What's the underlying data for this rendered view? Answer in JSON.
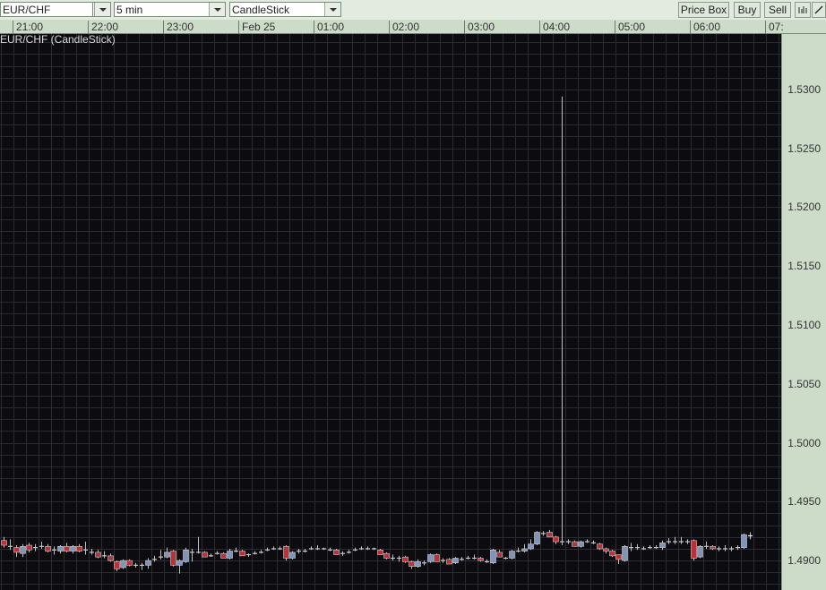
{
  "toolbar": {
    "symbol": "EUR/CHF",
    "interval": "5 min",
    "chart_type": "CandleStick",
    "price_box_label": "Price Box",
    "buy_label": "Buy",
    "sell_label": "Sell",
    "bars_icon": "bar-chart-icon",
    "draw_icon": "line-draw-icon"
  },
  "chart_title": "EUR/CHF (CandleStick)",
  "colors": {
    "background": "#0b0b10",
    "grid": "#2b2b35",
    "up": "#7f94b8",
    "down": "#b8323a",
    "doji": "#c8c8c8",
    "wick": "#c0c0c0"
  },
  "chart_data": {
    "type": "candlestick",
    "title": "EUR/CHF (CandleStick)",
    "x_tick_labels": [
      "21:00",
      "22:00",
      "23:00",
      "Feb 25",
      "01:00",
      "02:00",
      "03:00",
      "04:00",
      "05:00",
      "06:00",
      "07:"
    ],
    "y_tick_labels": [
      "1.5300",
      "1.5250",
      "1.5200",
      "1.5150",
      "1.5100",
      "1.5050",
      "1.5000",
      "1.4950",
      "1.4900"
    ],
    "ylim": [
      1.4875,
      1.5347
    ],
    "grid": true,
    "candle_fields": [
      "open",
      "high",
      "low",
      "close"
    ],
    "candles": [
      [
        1.4917,
        1.492,
        1.4911,
        1.4913
      ],
      [
        1.4912,
        1.4918,
        1.4909,
        1.4912
      ],
      [
        1.4911,
        1.4913,
        1.4903,
        1.4907
      ],
      [
        1.4906,
        1.4914,
        1.4903,
        1.4912
      ],
      [
        1.4913,
        1.4915,
        1.4907,
        1.4909
      ],
      [
        1.4911,
        1.4914,
        1.4908,
        1.4911
      ],
      [
        1.4912,
        1.4916,
        1.491,
        1.4912
      ],
      [
        1.4912,
        1.4914,
        1.4907,
        1.4908
      ],
      [
        1.4909,
        1.4912,
        1.4905,
        1.4909
      ],
      [
        1.4908,
        1.4913,
        1.4906,
        1.4912
      ],
      [
        1.4912,
        1.4915,
        1.4907,
        1.4908
      ],
      [
        1.4908,
        1.4913,
        1.4906,
        1.4912
      ],
      [
        1.4912,
        1.4914,
        1.4907,
        1.4908
      ],
      [
        1.4909,
        1.4916,
        1.4905,
        1.4909
      ],
      [
        1.4907,
        1.491,
        1.4905,
        1.4907
      ],
      [
        1.4907,
        1.4909,
        1.4902,
        1.4903
      ],
      [
        1.4904,
        1.4908,
        1.4902,
        1.4904
      ],
      [
        1.4904,
        1.4906,
        1.4899,
        1.49
      ],
      [
        1.4899,
        1.49,
        1.4891,
        1.4893
      ],
      [
        1.4894,
        1.4901,
        1.4893,
        1.49
      ],
      [
        1.49,
        1.4901,
        1.4895,
        1.4896
      ],
      [
        1.4896,
        1.4898,
        1.4894,
        1.4896
      ],
      [
        1.4896,
        1.4898,
        1.4892,
        1.4896
      ],
      [
        1.4896,
        1.4902,
        1.4893,
        1.49
      ],
      [
        1.4901,
        1.4904,
        1.4899,
        1.4901
      ],
      [
        1.4903,
        1.4909,
        1.4901,
        1.4903
      ],
      [
        1.4903,
        1.4911,
        1.4902,
        1.4907
      ],
      [
        1.4908,
        1.4909,
        1.4895,
        1.4896
      ],
      [
        1.4896,
        1.4901,
        1.4889,
        1.49
      ],
      [
        1.4899,
        1.4911,
        1.4898,
        1.4909
      ],
      [
        1.4907,
        1.491,
        1.4899,
        1.4907
      ],
      [
        1.4907,
        1.492,
        1.4906,
        1.4907
      ],
      [
        1.4907,
        1.4908,
        1.4903,
        1.4903
      ],
      [
        1.4904,
        1.4906,
        1.4903,
        1.4904
      ],
      [
        1.4906,
        1.4908,
        1.4905,
        1.4906
      ],
      [
        1.4906,
        1.4907,
        1.4902,
        1.4902
      ],
      [
        1.4902,
        1.491,
        1.4901,
        1.4908
      ],
      [
        1.4908,
        1.4911,
        1.4907,
        1.4908
      ],
      [
        1.4908,
        1.4909,
        1.4904,
        1.4904
      ],
      [
        1.4905,
        1.4906,
        1.4903,
        1.4905
      ],
      [
        1.4906,
        1.4908,
        1.4905,
        1.4906
      ],
      [
        1.4907,
        1.4909,
        1.4906,
        1.4907
      ],
      [
        1.4909,
        1.4911,
        1.4908,
        1.4909
      ],
      [
        1.491,
        1.4912,
        1.4909,
        1.491
      ],
      [
        1.491,
        1.4912,
        1.4909,
        1.491
      ],
      [
        1.4912,
        1.4913,
        1.49,
        1.4902
      ],
      [
        1.4902,
        1.4908,
        1.4901,
        1.4907
      ],
      [
        1.4908,
        1.491,
        1.4906,
        1.4908
      ],
      [
        1.4908,
        1.491,
        1.4907,
        1.4908
      ],
      [
        1.491,
        1.4912,
        1.4909,
        1.491
      ],
      [
        1.491,
        1.4913,
        1.4909,
        1.491
      ],
      [
        1.491,
        1.4911,
        1.4909,
        1.491
      ],
      [
        1.4909,
        1.4911,
        1.4908,
        1.4909
      ],
      [
        1.4909,
        1.491,
        1.4905,
        1.4905
      ],
      [
        1.4906,
        1.4908,
        1.4904,
        1.4906
      ],
      [
        1.4907,
        1.4909,
        1.4906,
        1.4907
      ],
      [
        1.4909,
        1.4911,
        1.4908,
        1.4909
      ],
      [
        1.491,
        1.4912,
        1.4909,
        1.491
      ],
      [
        1.491,
        1.4912,
        1.4909,
        1.491
      ],
      [
        1.491,
        1.4911,
        1.4909,
        1.491
      ],
      [
        1.4909,
        1.491,
        1.4905,
        1.4905
      ],
      [
        1.4906,
        1.4907,
        1.4901,
        1.4902
      ],
      [
        1.4902,
        1.4905,
        1.49,
        1.4902
      ],
      [
        1.4902,
        1.4904,
        1.4899,
        1.4902
      ],
      [
        1.4903,
        1.4904,
        1.4898,
        1.4899
      ],
      [
        1.4899,
        1.49,
        1.4893,
        1.4895
      ],
      [
        1.4895,
        1.4901,
        1.4894,
        1.4899
      ],
      [
        1.4898,
        1.49,
        1.4896,
        1.4898
      ],
      [
        1.4899,
        1.4906,
        1.4898,
        1.4905
      ],
      [
        1.4905,
        1.4906,
        1.4899,
        1.4899
      ],
      [
        1.49,
        1.4902,
        1.4898,
        1.49
      ],
      [
        1.4901,
        1.4902,
        1.4897,
        1.4897
      ],
      [
        1.4898,
        1.4903,
        1.4897,
        1.4902
      ],
      [
        1.4901,
        1.4903,
        1.49,
        1.4901
      ],
      [
        1.4902,
        1.4904,
        1.4901,
        1.4902
      ],
      [
        1.4902,
        1.4905,
        1.4901,
        1.4902
      ],
      [
        1.4902,
        1.4903,
        1.4899,
        1.49
      ],
      [
        1.4899,
        1.4901,
        1.4898,
        1.4899
      ],
      [
        1.4898,
        1.491,
        1.4897,
        1.4909
      ],
      [
        1.4907,
        1.4909,
        1.4903,
        1.4903
      ],
      [
        1.4902,
        1.4903,
        1.4901,
        1.4902
      ],
      [
        1.4902,
        1.4909,
        1.4901,
        1.4908
      ],
      [
        1.4908,
        1.4911,
        1.4907,
        1.4908
      ],
      [
        1.4908,
        1.4914,
        1.4907,
        1.491
      ],
      [
        1.491,
        1.4918,
        1.4909,
        1.4914
      ],
      [
        1.4914,
        1.4925,
        1.4913,
        1.4924
      ],
      [
        1.4923,
        1.4925,
        1.4921,
        1.4923
      ],
      [
        1.4924,
        1.4926,
        1.492,
        1.492
      ],
      [
        1.492,
        1.4921,
        1.4914,
        1.4916
      ],
      [
        1.4916,
        1.5294,
        1.4913,
        1.4916
      ],
      [
        1.4916,
        1.4918,
        1.4914,
        1.4916
      ],
      [
        1.4916,
        1.4917,
        1.4912,
        1.4912
      ],
      [
        1.4912,
        1.4917,
        1.4911,
        1.4916
      ],
      [
        1.4916,
        1.4918,
        1.4915,
        1.4916
      ],
      [
        1.4915,
        1.4917,
        1.4914,
        1.4915
      ],
      [
        1.4914,
        1.4915,
        1.4909,
        1.491
      ],
      [
        1.491,
        1.4911,
        1.4906,
        1.4908
      ],
      [
        1.4908,
        1.4909,
        1.4903,
        1.4904
      ],
      [
        1.4905,
        1.4905,
        1.4897,
        1.4901
      ],
      [
        1.49,
        1.4913,
        1.4899,
        1.4912
      ],
      [
        1.4911,
        1.4915,
        1.4908,
        1.4911
      ],
      [
        1.4911,
        1.4914,
        1.4909,
        1.4911
      ],
      [
        1.491,
        1.4912,
        1.4909,
        1.491
      ],
      [
        1.4911,
        1.4913,
        1.491,
        1.4911
      ],
      [
        1.4911,
        1.4913,
        1.491,
        1.4911
      ],
      [
        1.4911,
        1.4917,
        1.4909,
        1.4915
      ],
      [
        1.4916,
        1.4919,
        1.4914,
        1.4916
      ],
      [
        1.4916,
        1.492,
        1.4914,
        1.4916
      ],
      [
        1.4916,
        1.492,
        1.4914,
        1.4916
      ],
      [
        1.4916,
        1.4918,
        1.4914,
        1.4916
      ],
      [
        1.4917,
        1.4918,
        1.49,
        1.4902
      ],
      [
        1.4903,
        1.4913,
        1.4902,
        1.4912
      ],
      [
        1.4912,
        1.4916,
        1.491,
        1.4912
      ],
      [
        1.4912,
        1.4913,
        1.4909,
        1.491
      ],
      [
        1.491,
        1.4912,
        1.4908,
        1.491
      ],
      [
        1.491,
        1.4913,
        1.4908,
        1.491
      ],
      [
        1.491,
        1.4912,
        1.4908,
        1.491
      ],
      [
        1.4911,
        1.4913,
        1.4909,
        1.4911
      ],
      [
        1.4911,
        1.4923,
        1.491,
        1.4922
      ],
      [
        1.4921,
        1.4924,
        1.4918,
        1.4921
      ]
    ]
  }
}
